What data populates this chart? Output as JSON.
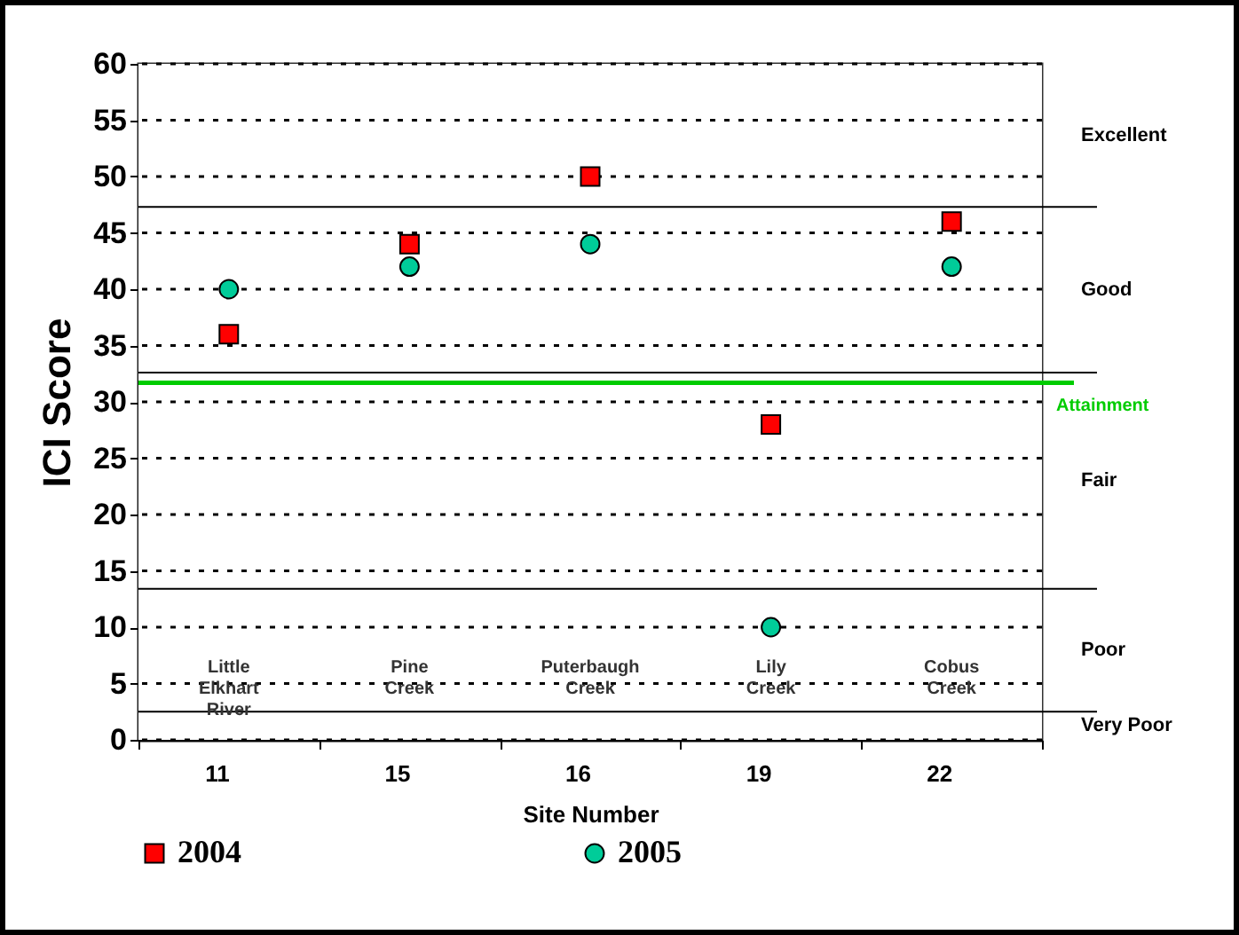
{
  "chart_data": {
    "type": "scatter",
    "xlabel": "Site Number",
    "ylabel": "ICI Score",
    "categories": [
      "11",
      "15",
      "16",
      "19",
      "22"
    ],
    "series": [
      {
        "name": "2004",
        "color": "#ff0000",
        "marker": "square",
        "values": [
          36,
          44,
          50,
          28,
          46
        ]
      },
      {
        "name": "2005",
        "color": "#00cc99",
        "marker": "circle",
        "values": [
          40,
          42,
          44,
          10,
          42
        ]
      }
    ],
    "ylim": [
      0,
      60
    ],
    "yticks": [
      0,
      5,
      10,
      15,
      20,
      25,
      30,
      35,
      40,
      45,
      50,
      55,
      60
    ],
    "grid": "y",
    "legend": "bottom",
    "ref_lines": [
      {
        "axis": "y",
        "value": 47.3,
        "label": null,
        "color": "#000000"
      },
      {
        "axis": "y",
        "value": 32.6,
        "label": null,
        "color": "#000000"
      },
      {
        "axis": "y",
        "value": 31.7,
        "label": "Attainment",
        "color": "#00cc00"
      },
      {
        "axis": "y",
        "value": 13.4,
        "label": null,
        "color": "#000000"
      },
      {
        "axis": "y",
        "value": 2.5,
        "label": null,
        "color": "#000000"
      }
    ],
    "bands": [
      {
        "axis": "y",
        "from": 47.3,
        "to": 60,
        "label": "Excellent",
        "color": "#ffffff"
      },
      {
        "axis": "y",
        "from": 32.6,
        "to": 47.3,
        "label": "Good",
        "color": "#ffffff"
      },
      {
        "axis": "y",
        "from": 13.4,
        "to": 32.6,
        "label": "Fair",
        "color": "#ffffff"
      },
      {
        "axis": "y",
        "from": 2.5,
        "to": 13.4,
        "label": "Poor",
        "color": "#ffffff"
      },
      {
        "axis": "y",
        "from": 0,
        "to": 2.5,
        "label": "Very Poor",
        "color": "#ffffff"
      }
    ],
    "annotations": [
      "Little Elkhart River",
      "Pine Creek",
      "Puterbaugh Creek",
      "Lily Creek",
      "Cobus Creek"
    ]
  }
}
